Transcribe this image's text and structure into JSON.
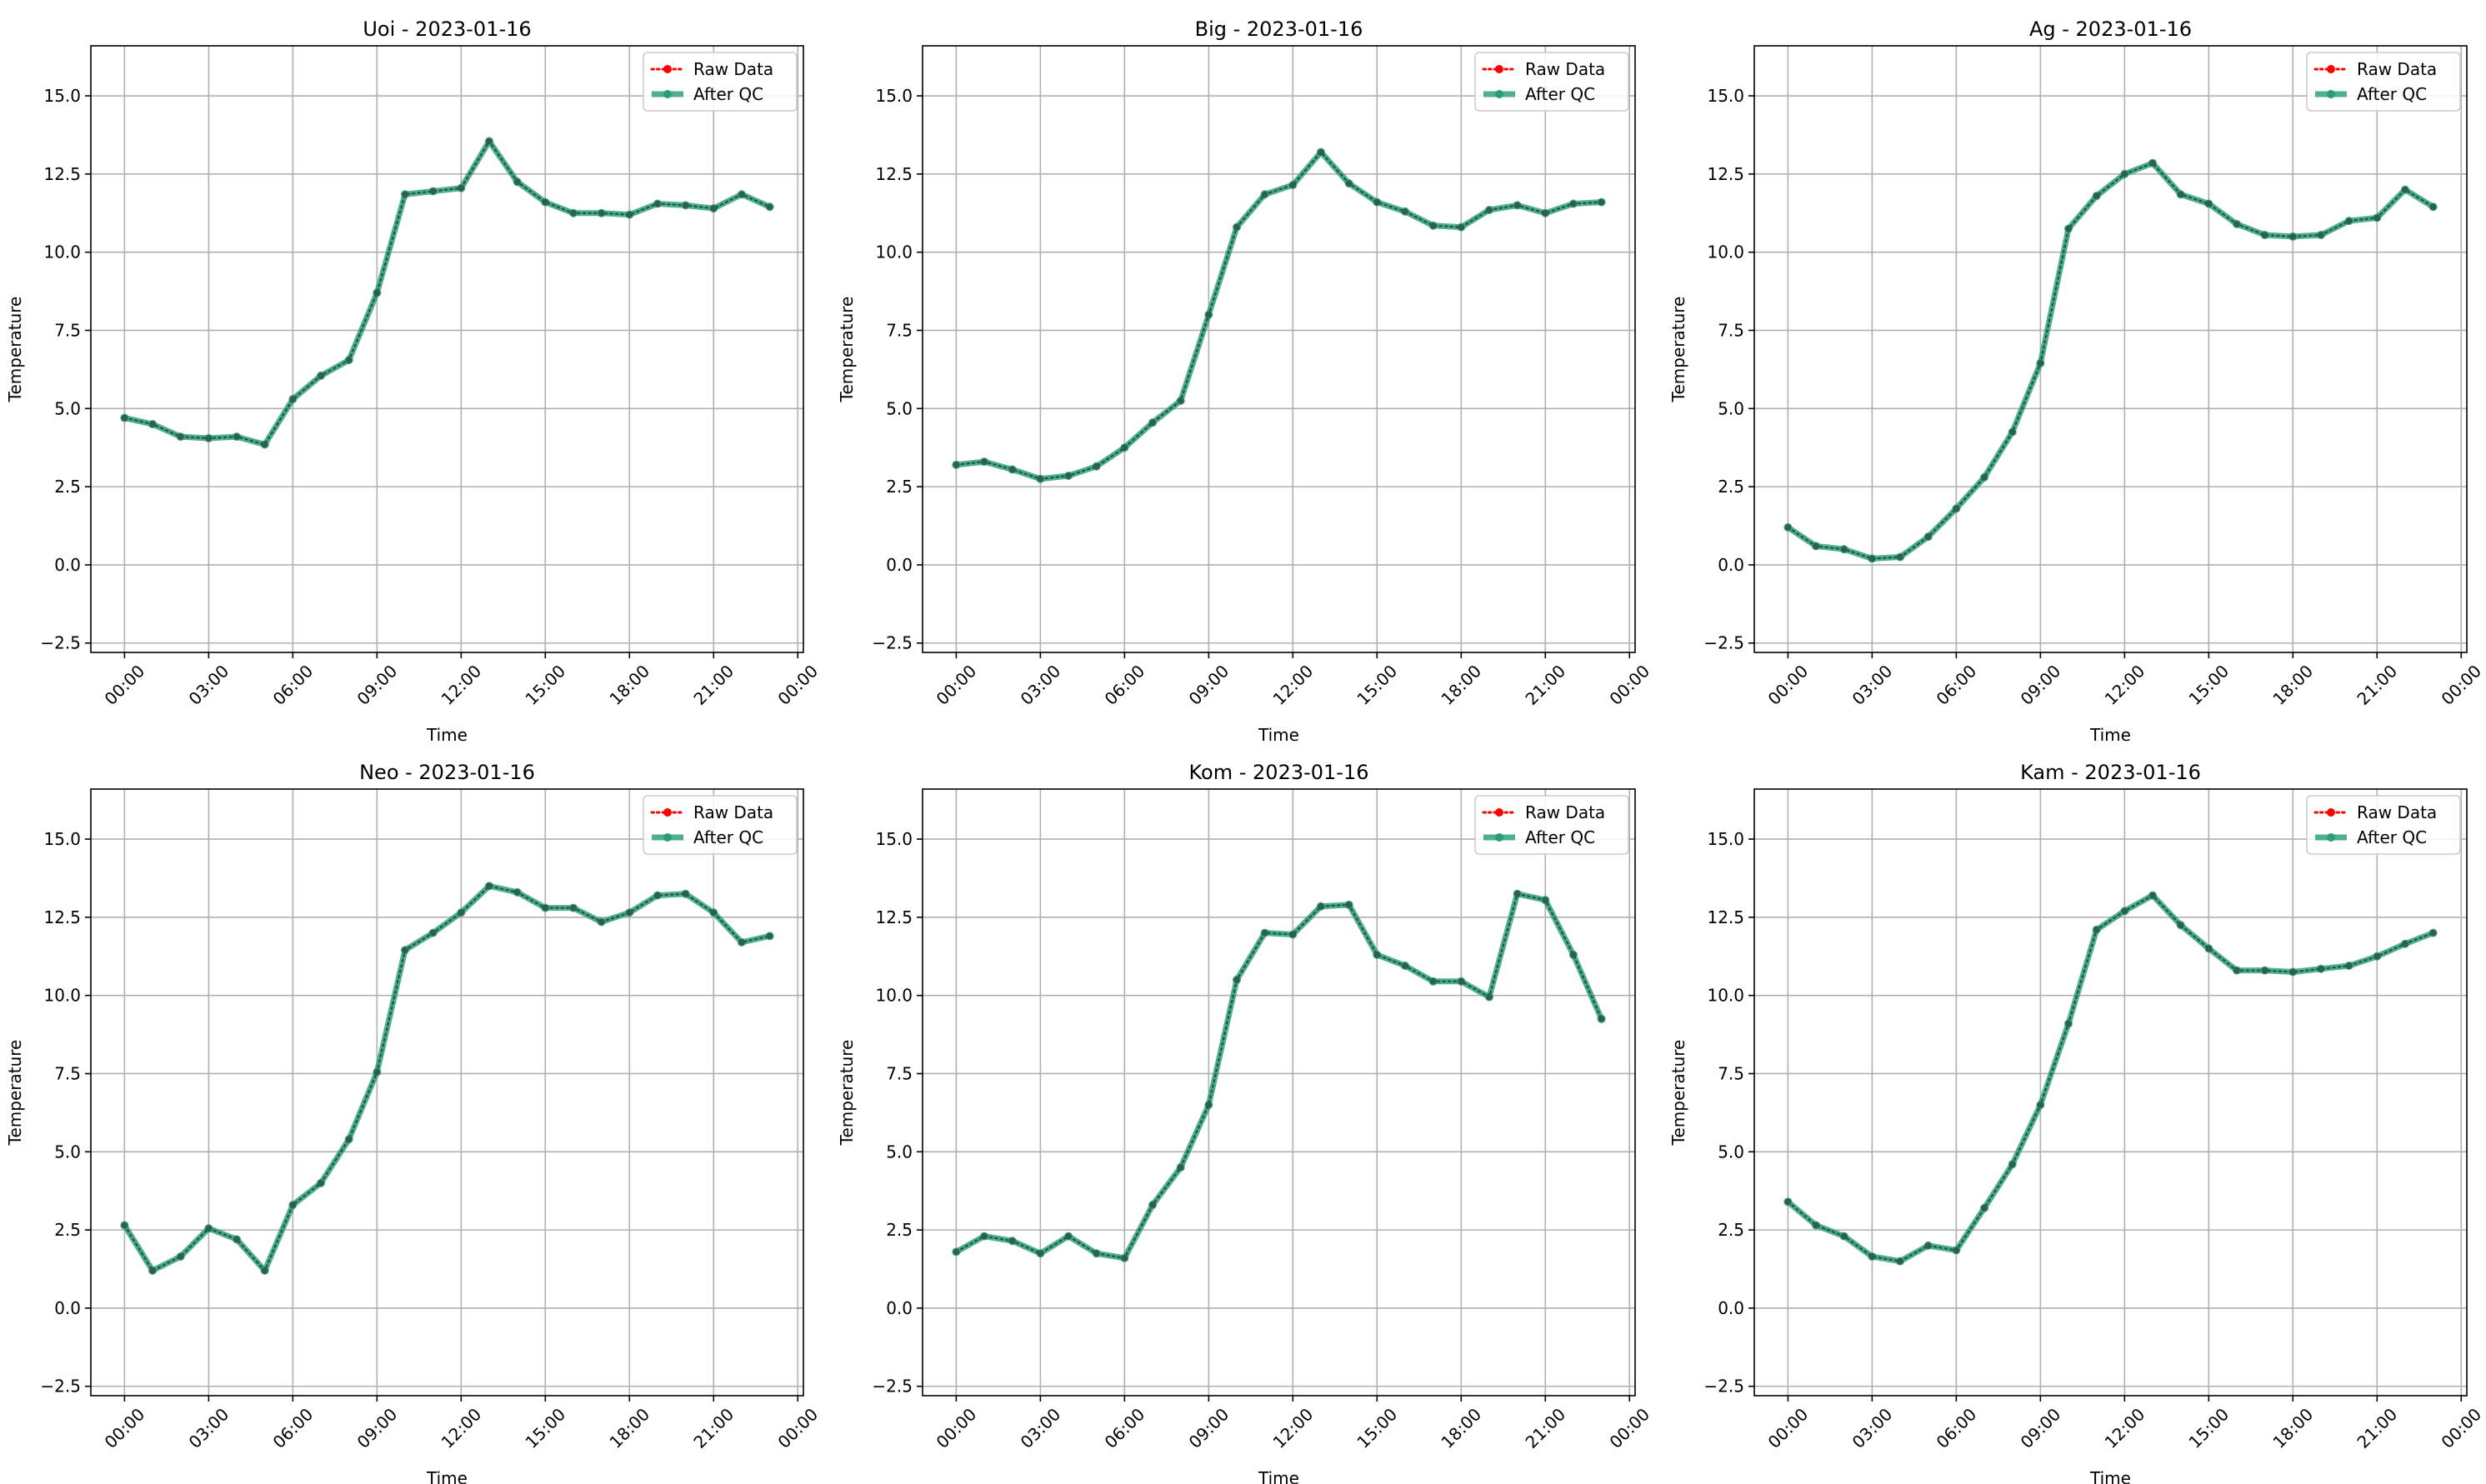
{
  "chart_data": [
    {
      "type": "line",
      "title": "Uoi - 2023-01-16",
      "xlabel": "Time",
      "ylabel": "Temperature",
      "xlim": [
        -1.2,
        24.2
      ],
      "ylim": [
        -2.8,
        16.6
      ],
      "xticks": [
        0,
        3,
        6,
        9,
        12,
        15,
        18,
        21,
        24
      ],
      "xtick_labels": [
        "00:00",
        "03:00",
        "06:00",
        "09:00",
        "12:00",
        "15:00",
        "18:00",
        "21:00",
        "00:00"
      ],
      "yticks": [
        -2.5,
        0.0,
        2.5,
        5.0,
        7.5,
        10.0,
        12.5,
        15.0
      ],
      "ytick_labels": [
        "−2.5",
        "0.0",
        "2.5",
        "5.0",
        "7.5",
        "10.0",
        "12.5",
        "15.0"
      ],
      "grid": true,
      "legend_position": "top-right",
      "x": [
        0,
        1,
        2,
        3,
        4,
        5,
        6,
        7,
        8,
        9,
        10,
        11,
        12,
        13,
        14,
        15,
        16,
        17,
        18,
        19,
        20,
        21,
        22,
        23
      ],
      "series": [
        {
          "name": "Raw Data",
          "color": "#ff0000",
          "style": "dotted",
          "values": [
            4.7,
            4.5,
            4.1,
            4.05,
            4.1,
            3.85,
            5.3,
            6.05,
            6.55,
            8.7,
            11.85,
            11.95,
            12.05,
            13.55,
            12.25,
            11.6,
            11.25,
            11.25,
            11.2,
            11.55,
            11.5,
            11.4,
            11.85,
            11.45
          ]
        },
        {
          "name": "After QC",
          "color": "#2a9d78",
          "style": "solid",
          "values": [
            4.7,
            4.5,
            4.1,
            4.05,
            4.1,
            3.85,
            5.3,
            6.05,
            6.55,
            8.7,
            11.85,
            11.95,
            12.05,
            13.55,
            12.25,
            11.6,
            11.25,
            11.25,
            11.2,
            11.55,
            11.5,
            11.4,
            11.85,
            11.45
          ]
        }
      ]
    },
    {
      "type": "line",
      "title": "Big - 2023-01-16",
      "xlabel": "Time",
      "ylabel": "Temperature",
      "xlim": [
        -1.2,
        24.2
      ],
      "ylim": [
        -2.8,
        16.6
      ],
      "xticks": [
        0,
        3,
        6,
        9,
        12,
        15,
        18,
        21,
        24
      ],
      "xtick_labels": [
        "00:00",
        "03:00",
        "06:00",
        "09:00",
        "12:00",
        "15:00",
        "18:00",
        "21:00",
        "00:00"
      ],
      "yticks": [
        -2.5,
        0.0,
        2.5,
        5.0,
        7.5,
        10.0,
        12.5,
        15.0
      ],
      "ytick_labels": [
        "−2.5",
        "0.0",
        "2.5",
        "5.0",
        "7.5",
        "10.0",
        "12.5",
        "15.0"
      ],
      "grid": true,
      "legend_position": "top-right",
      "x": [
        0,
        1,
        2,
        3,
        4,
        5,
        6,
        7,
        8,
        9,
        10,
        11,
        12,
        13,
        14,
        15,
        16,
        17,
        18,
        19,
        20,
        21,
        22,
        23
      ],
      "series": [
        {
          "name": "Raw Data",
          "color": "#ff0000",
          "style": "dotted",
          "values": [
            3.2,
            3.3,
            3.05,
            2.75,
            2.85,
            3.15,
            3.75,
            4.55,
            5.25,
            8.0,
            10.8,
            11.85,
            12.15,
            13.2,
            12.2,
            11.6,
            11.3,
            10.85,
            10.8,
            11.35,
            11.5,
            11.25,
            11.55,
            11.6
          ]
        },
        {
          "name": "After QC",
          "color": "#2a9d78",
          "style": "solid",
          "values": [
            3.2,
            3.3,
            3.05,
            2.75,
            2.85,
            3.15,
            3.75,
            4.55,
            5.25,
            8.0,
            10.8,
            11.85,
            12.15,
            13.2,
            12.2,
            11.6,
            11.3,
            10.85,
            10.8,
            11.35,
            11.5,
            11.25,
            11.55,
            11.6
          ]
        }
      ]
    },
    {
      "type": "line",
      "title": "Ag - 2023-01-16",
      "xlabel": "Time",
      "ylabel": "Temperature",
      "xlim": [
        -1.2,
        24.2
      ],
      "ylim": [
        -2.8,
        16.6
      ],
      "xticks": [
        0,
        3,
        6,
        9,
        12,
        15,
        18,
        21,
        24
      ],
      "xtick_labels": [
        "00:00",
        "03:00",
        "06:00",
        "09:00",
        "12:00",
        "15:00",
        "18:00",
        "21:00",
        "00:00"
      ],
      "yticks": [
        -2.5,
        0.0,
        2.5,
        5.0,
        7.5,
        10.0,
        12.5,
        15.0
      ],
      "ytick_labels": [
        "−2.5",
        "0.0",
        "2.5",
        "5.0",
        "7.5",
        "10.0",
        "12.5",
        "15.0"
      ],
      "grid": true,
      "legend_position": "top-right",
      "x": [
        0,
        1,
        2,
        3,
        4,
        5,
        6,
        7,
        8,
        9,
        10,
        11,
        12,
        13,
        14,
        15,
        16,
        17,
        18,
        19,
        20,
        21,
        22,
        23
      ],
      "series": [
        {
          "name": "Raw Data",
          "color": "#ff0000",
          "style": "dotted",
          "values": [
            1.2,
            0.6,
            0.5,
            0.2,
            0.25,
            0.9,
            1.8,
            2.8,
            4.25,
            6.45,
            10.75,
            11.8,
            12.5,
            12.85,
            11.85,
            11.55,
            10.9,
            10.55,
            10.5,
            10.55,
            11.0,
            11.1,
            12.0,
            11.45
          ]
        },
        {
          "name": "After QC",
          "color": "#2a9d78",
          "style": "solid",
          "values": [
            1.2,
            0.6,
            0.5,
            0.2,
            0.25,
            0.9,
            1.8,
            2.8,
            4.25,
            6.45,
            10.75,
            11.8,
            12.5,
            12.85,
            11.85,
            11.55,
            10.9,
            10.55,
            10.5,
            10.55,
            11.0,
            11.1,
            12.0,
            11.45
          ]
        }
      ]
    },
    {
      "type": "line",
      "title": "Neo - 2023-01-16",
      "xlabel": "Time",
      "ylabel": "Temperature",
      "xlim": [
        -1.2,
        24.2
      ],
      "ylim": [
        -2.8,
        16.6
      ],
      "xticks": [
        0,
        3,
        6,
        9,
        12,
        15,
        18,
        21,
        24
      ],
      "xtick_labels": [
        "00:00",
        "03:00",
        "06:00",
        "09:00",
        "12:00",
        "15:00",
        "18:00",
        "21:00",
        "00:00"
      ],
      "yticks": [
        -2.5,
        0.0,
        2.5,
        5.0,
        7.5,
        10.0,
        12.5,
        15.0
      ],
      "ytick_labels": [
        "−2.5",
        "0.0",
        "2.5",
        "5.0",
        "7.5",
        "10.0",
        "12.5",
        "15.0"
      ],
      "grid": true,
      "legend_position": "top-right",
      "x": [
        0,
        1,
        2,
        3,
        4,
        5,
        6,
        7,
        8,
        9,
        10,
        11,
        12,
        13,
        14,
        15,
        16,
        17,
        18,
        19,
        20,
        21,
        22,
        23
      ],
      "series": [
        {
          "name": "Raw Data",
          "color": "#ff0000",
          "style": "dotted",
          "values": [
            2.65,
            1.2,
            1.65,
            2.55,
            2.2,
            1.2,
            3.3,
            4.0,
            5.4,
            7.55,
            11.45,
            12.0,
            12.65,
            13.5,
            13.3,
            12.8,
            12.8,
            12.35,
            12.65,
            13.2,
            13.25,
            12.65,
            11.7,
            11.9
          ]
        },
        {
          "name": "After QC",
          "color": "#2a9d78",
          "style": "solid",
          "values": [
            2.65,
            1.2,
            1.65,
            2.55,
            2.2,
            1.2,
            3.3,
            4.0,
            5.4,
            7.55,
            11.45,
            12.0,
            12.65,
            13.5,
            13.3,
            12.8,
            12.8,
            12.35,
            12.65,
            13.2,
            13.25,
            12.65,
            11.7,
            11.9
          ]
        }
      ]
    },
    {
      "type": "line",
      "title": "Kom - 2023-01-16",
      "xlabel": "Time",
      "ylabel": "Temperature",
      "xlim": [
        -1.2,
        24.2
      ],
      "ylim": [
        -2.8,
        16.6
      ],
      "xticks": [
        0,
        3,
        6,
        9,
        12,
        15,
        18,
        21,
        24
      ],
      "xtick_labels": [
        "00:00",
        "03:00",
        "06:00",
        "09:00",
        "12:00",
        "15:00",
        "18:00",
        "21:00",
        "00:00"
      ],
      "yticks": [
        -2.5,
        0.0,
        2.5,
        5.0,
        7.5,
        10.0,
        12.5,
        15.0
      ],
      "ytick_labels": [
        "−2.5",
        "0.0",
        "2.5",
        "5.0",
        "7.5",
        "10.0",
        "12.5",
        "15.0"
      ],
      "grid": true,
      "legend_position": "top-right",
      "x": [
        0,
        1,
        2,
        3,
        4,
        5,
        6,
        7,
        8,
        9,
        10,
        11,
        12,
        13,
        14,
        15,
        16,
        17,
        18,
        19,
        20,
        21,
        22,
        23
      ],
      "series": [
        {
          "name": "Raw Data",
          "color": "#ff0000",
          "style": "dotted",
          "values": [
            1.8,
            2.3,
            2.15,
            1.75,
            2.3,
            1.75,
            1.6,
            3.3,
            4.5,
            6.5,
            10.5,
            12.0,
            11.95,
            12.85,
            12.9,
            11.3,
            10.95,
            10.45,
            10.45,
            9.95,
            13.25,
            13.05,
            11.3,
            9.25
          ]
        },
        {
          "name": "After QC",
          "color": "#2a9d78",
          "style": "solid",
          "values": [
            1.8,
            2.3,
            2.15,
            1.75,
            2.3,
            1.75,
            1.6,
            3.3,
            4.5,
            6.5,
            10.5,
            12.0,
            11.95,
            12.85,
            12.9,
            11.3,
            10.95,
            10.45,
            10.45,
            9.95,
            13.25,
            13.05,
            11.3,
            9.25
          ]
        }
      ]
    },
    {
      "type": "line",
      "title": "Kam - 2023-01-16",
      "xlabel": "Time",
      "ylabel": "Temperature",
      "xlim": [
        -1.2,
        24.2
      ],
      "ylim": [
        -2.8,
        16.6
      ],
      "xticks": [
        0,
        3,
        6,
        9,
        12,
        15,
        18,
        21,
        24
      ],
      "xtick_labels": [
        "00:00",
        "03:00",
        "06:00",
        "09:00",
        "12:00",
        "15:00",
        "18:00",
        "21:00",
        "00:00"
      ],
      "yticks": [
        -2.5,
        0.0,
        2.5,
        5.0,
        7.5,
        10.0,
        12.5,
        15.0
      ],
      "ytick_labels": [
        "−2.5",
        "0.0",
        "2.5",
        "5.0",
        "7.5",
        "10.0",
        "12.5",
        "15.0"
      ],
      "grid": true,
      "legend_position": "top-right",
      "x": [
        0,
        1,
        2,
        3,
        4,
        5,
        6,
        7,
        8,
        9,
        10,
        11,
        12,
        13,
        14,
        15,
        16,
        17,
        18,
        19,
        20,
        21,
        22,
        23
      ],
      "series": [
        {
          "name": "Raw Data",
          "color": "#ff0000",
          "style": "dotted",
          "values": [
            3.4,
            2.65,
            2.3,
            1.65,
            1.5,
            2.0,
            1.85,
            3.2,
            4.6,
            6.5,
            9.1,
            12.1,
            12.7,
            13.2,
            12.25,
            11.5,
            10.8,
            10.8,
            10.75,
            10.85,
            10.95,
            11.25,
            11.65,
            12.0
          ]
        },
        {
          "name": "After QC",
          "color": "#2a9d78",
          "style": "solid",
          "values": [
            3.4,
            2.65,
            2.3,
            1.65,
            1.5,
            2.0,
            1.85,
            3.2,
            4.6,
            6.5,
            9.1,
            12.1,
            12.7,
            13.2,
            12.25,
            11.5,
            10.8,
            10.8,
            10.75,
            10.85,
            10.95,
            11.25,
            11.65,
            12.0
          ]
        }
      ]
    }
  ]
}
